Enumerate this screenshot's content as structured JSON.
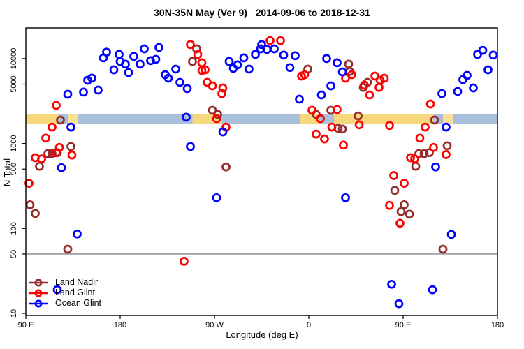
{
  "chart_data": {
    "type": "scatter",
    "title": "30N-35N May (Ver 9)   2014-09-06 to 2018-12-31",
    "xlabel": "Longitude (deg E)",
    "ylabel": "N Total",
    "x_axis": {
      "range_deg": [
        90,
        540
      ],
      "ticks": [
        {
          "pos": 90,
          "label": "90 E"
        },
        {
          "pos": 180,
          "label": "180"
        },
        {
          "pos": 270,
          "label": "90 W"
        },
        {
          "pos": 360,
          "label": "0"
        },
        {
          "pos": 450,
          "label": "90 E"
        },
        {
          "pos": 540,
          "label": "180"
        }
      ]
    },
    "y_axis": {
      "scale": "log",
      "range": [
        10,
        17000
      ],
      "ticks": [
        {
          "value": 10,
          "label": "10"
        },
        {
          "value": 50,
          "label": "50"
        },
        {
          "value": 100,
          "label": "100"
        },
        {
          "value": 500,
          "label": "500"
        },
        {
          "value": 1000,
          "label": "1000"
        },
        {
          "value": 5000,
          "label": "5000"
        },
        {
          "value": 10000,
          "label": "10000"
        }
      ],
      "reference_line_value": 50,
      "reference_line_color": "#858585"
    },
    "surface_band": {
      "n_top": 2200,
      "n_bottom": 1700,
      "land_color": "#F7D87C",
      "ocean_color": "#A9C0DD",
      "segments": [
        {
          "start": 90,
          "end": 121,
          "surface": "land"
        },
        {
          "start": 121,
          "end": 130,
          "surface": "ocean"
        },
        {
          "start": 130,
          "end": 140,
          "surface": "land_sparse"
        },
        {
          "start": 140,
          "end": 249,
          "surface": "ocean"
        },
        {
          "start": 249,
          "end": 277,
          "surface": "land"
        },
        {
          "start": 277,
          "end": 352,
          "surface": "ocean"
        },
        {
          "start": 352,
          "end": 370,
          "surface": "land"
        },
        {
          "start": 370,
          "end": 384,
          "surface": "ocean"
        },
        {
          "start": 384,
          "end": 479,
          "surface": "land"
        },
        {
          "start": 479,
          "end": 488,
          "surface": "ocean"
        },
        {
          "start": 488,
          "end": 498,
          "surface": "land_sparse"
        },
        {
          "start": 498,
          "end": 540,
          "surface": "ocean"
        }
      ]
    },
    "series": [
      {
        "name": "Land Nadir",
        "color": "#962B2B",
        "points": [
          [
            123,
            1890
          ],
          [
            133,
            920
          ],
          [
            111,
            760
          ],
          [
            115,
            760
          ],
          [
            120,
            780
          ],
          [
            103,
            540
          ],
          [
            94,
            190
          ],
          [
            99,
            150
          ],
          [
            130,
            57
          ],
          [
            253,
            13000
          ],
          [
            249,
            9260
          ],
          [
            268,
            2460
          ],
          [
            273,
            2200
          ],
          [
            281,
            530
          ],
          [
            359,
            7520
          ],
          [
            398,
            8590
          ],
          [
            399,
            7050
          ],
          [
            416,
            5250
          ],
          [
            412,
            4570
          ],
          [
            367,
            2200
          ],
          [
            381,
            2460
          ],
          [
            407,
            2110
          ],
          [
            388,
            1510
          ],
          [
            392,
            1480
          ],
          [
            480,
            1890
          ],
          [
            492,
            940
          ],
          [
            465,
            760
          ],
          [
            470,
            760
          ],
          [
            475,
            780
          ],
          [
            462,
            540
          ],
          [
            442,
            280
          ],
          [
            451,
            190
          ],
          [
            448,
            158
          ],
          [
            456,
            147
          ],
          [
            488,
            57
          ]
        ]
      },
      {
        "name": "Land Glint",
        "color": "#FF0000",
        "points": [
          [
            119,
            2810
          ],
          [
            115,
            1560
          ],
          [
            109,
            1160
          ],
          [
            122,
            900
          ],
          [
            99,
            680
          ],
          [
            105,
            660
          ],
          [
            119,
            780
          ],
          [
            134,
            730
          ],
          [
            93,
            340
          ],
          [
            241,
            41
          ],
          [
            247,
            14600
          ],
          [
            254,
            11200
          ],
          [
            258,
            8920
          ],
          [
            261,
            7380
          ],
          [
            258,
            7240
          ],
          [
            263,
            5250
          ],
          [
            268,
            4770
          ],
          [
            278,
            4510
          ],
          [
            277,
            3870
          ],
          [
            272,
            1960
          ],
          [
            281,
            1560
          ],
          [
            323,
            16300
          ],
          [
            333,
            16300
          ],
          [
            356,
            6460
          ],
          [
            353,
            6220
          ],
          [
            401,
            6460
          ],
          [
            395,
            5880
          ],
          [
            423,
            6220
          ],
          [
            428,
            5550
          ],
          [
            432,
            5880
          ],
          [
            427,
            4570
          ],
          [
            413,
            4870
          ],
          [
            418,
            3730
          ],
          [
            363,
            2460
          ],
          [
            387,
            2510
          ],
          [
            371,
            1960
          ],
          [
            408,
            1660
          ],
          [
            382,
            1560
          ],
          [
            367,
            1290
          ],
          [
            375,
            1130
          ],
          [
            393,
            960
          ],
          [
            476,
            2920
          ],
          [
            437,
            1630
          ],
          [
            471,
            1560
          ],
          [
            466,
            1160
          ],
          [
            479,
            900
          ],
          [
            457,
            680
          ],
          [
            461,
            660
          ],
          [
            491,
            740
          ],
          [
            441,
            420
          ],
          [
            451,
            340
          ],
          [
            437,
            187
          ],
          [
            447,
            115
          ]
        ]
      },
      {
        "name": "Ocean Glint",
        "color": "#0000FF",
        "points": [
          [
            167,
            11900
          ],
          [
            164,
            10200
          ],
          [
            179,
            11200
          ],
          [
            180,
            9260
          ],
          [
            193,
            10600
          ],
          [
            203,
            13000
          ],
          [
            199,
            8590
          ],
          [
            185,
            8590
          ],
          [
            174,
            7380
          ],
          [
            188,
            6840
          ],
          [
            149,
            5550
          ],
          [
            153,
            5880
          ],
          [
            159,
            4260
          ],
          [
            145,
            4030
          ],
          [
            130,
            3800
          ],
          [
            133,
            1560
          ],
          [
            124,
            520
          ],
          [
            139,
            86
          ],
          [
            120,
            19
          ],
          [
            217,
            13500
          ],
          [
            209,
            9440
          ],
          [
            214,
            9800
          ],
          [
            223,
            6460
          ],
          [
            226,
            5880
          ],
          [
            233,
            7520
          ],
          [
            237,
            5250
          ],
          [
            244,
            4430
          ],
          [
            243,
            2040
          ],
          [
            278,
            1370
          ],
          [
            247,
            920
          ],
          [
            272,
            230
          ],
          [
            284,
            9260
          ],
          [
            288,
            7660
          ],
          [
            292,
            8430
          ],
          [
            298,
            10200
          ],
          [
            303,
            7520
          ],
          [
            309,
            11200
          ],
          [
            314,
            13000
          ],
          [
            315,
            14600
          ],
          [
            320,
            12800
          ],
          [
            327,
            13000
          ],
          [
            336,
            11000
          ],
          [
            347,
            10800
          ],
          [
            342,
            7840
          ],
          [
            351,
            3330
          ],
          [
            377,
            10000
          ],
          [
            387,
            8920
          ],
          [
            392,
            6970
          ],
          [
            381,
            4770
          ],
          [
            372,
            3730
          ],
          [
            395,
            230
          ],
          [
            521,
            11200
          ],
          [
            526,
            12500
          ],
          [
            536,
            11000
          ],
          [
            531,
            7380
          ],
          [
            511,
            6340
          ],
          [
            507,
            5660
          ],
          [
            517,
            4510
          ],
          [
            502,
            4100
          ],
          [
            487,
            3870
          ],
          [
            491,
            1560
          ],
          [
            481,
            530
          ],
          [
            496,
            85
          ],
          [
            439,
            22
          ],
          [
            478,
            19
          ],
          [
            446,
            13
          ]
        ]
      }
    ]
  }
}
